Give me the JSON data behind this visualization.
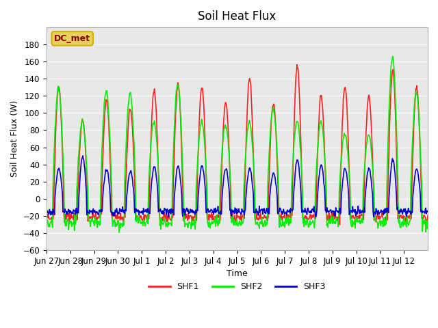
{
  "title": "Soil Heat Flux",
  "xlabel": "Time",
  "ylabel": "Soil Heat Flux (W)",
  "ylim": [
    -60,
    200
  ],
  "yticks": [
    -60,
    -40,
    -20,
    0,
    20,
    40,
    60,
    80,
    100,
    120,
    140,
    160,
    180
  ],
  "background_color": "#e8e8e8",
  "grid_color": "white",
  "line_colors": {
    "SHF1": "#ff2020",
    "SHF2": "#00ee00",
    "SHF3": "#0000cd"
  },
  "line_widths": {
    "SHF1": 1.2,
    "SHF2": 1.2,
    "SHF3": 1.2
  },
  "legend_label": "DC_met",
  "legend_box_facecolor": "#e8d060",
  "legend_box_edgecolor": "#d4b000",
  "legend_text_color": "#8b0000",
  "tick_labels": [
    "Jun 27",
    "Jun 28",
    "Jun 29",
    "Jun 30",
    "Jul 1",
    "Jul 2",
    "Jul 3",
    "Jul 4",
    "Jul 5",
    "Jul 6",
    "Jul 7",
    "Jul 8",
    "Jul 9",
    "Jul 10",
    "Jul 11",
    "Jul 12"
  ],
  "num_days": 16,
  "samples_per_day": 48,
  "shf1_amps": [
    130,
    92,
    115,
    105,
    127,
    133,
    130,
    112,
    140,
    112,
    155,
    120,
    130,
    120,
    150,
    130
  ],
  "shf2_amps": [
    130,
    90,
    126,
    123,
    90,
    135,
    90,
    86,
    90,
    105,
    90,
    90,
    75,
    75,
    165,
    125
  ],
  "shf3_amps": [
    35,
    50,
    35,
    32,
    38,
    38,
    38,
    35,
    35,
    30,
    45,
    40,
    35,
    35,
    45,
    35
  ],
  "shf1_min": -22,
  "shf2_min": -28,
  "shf3_min": -15
}
